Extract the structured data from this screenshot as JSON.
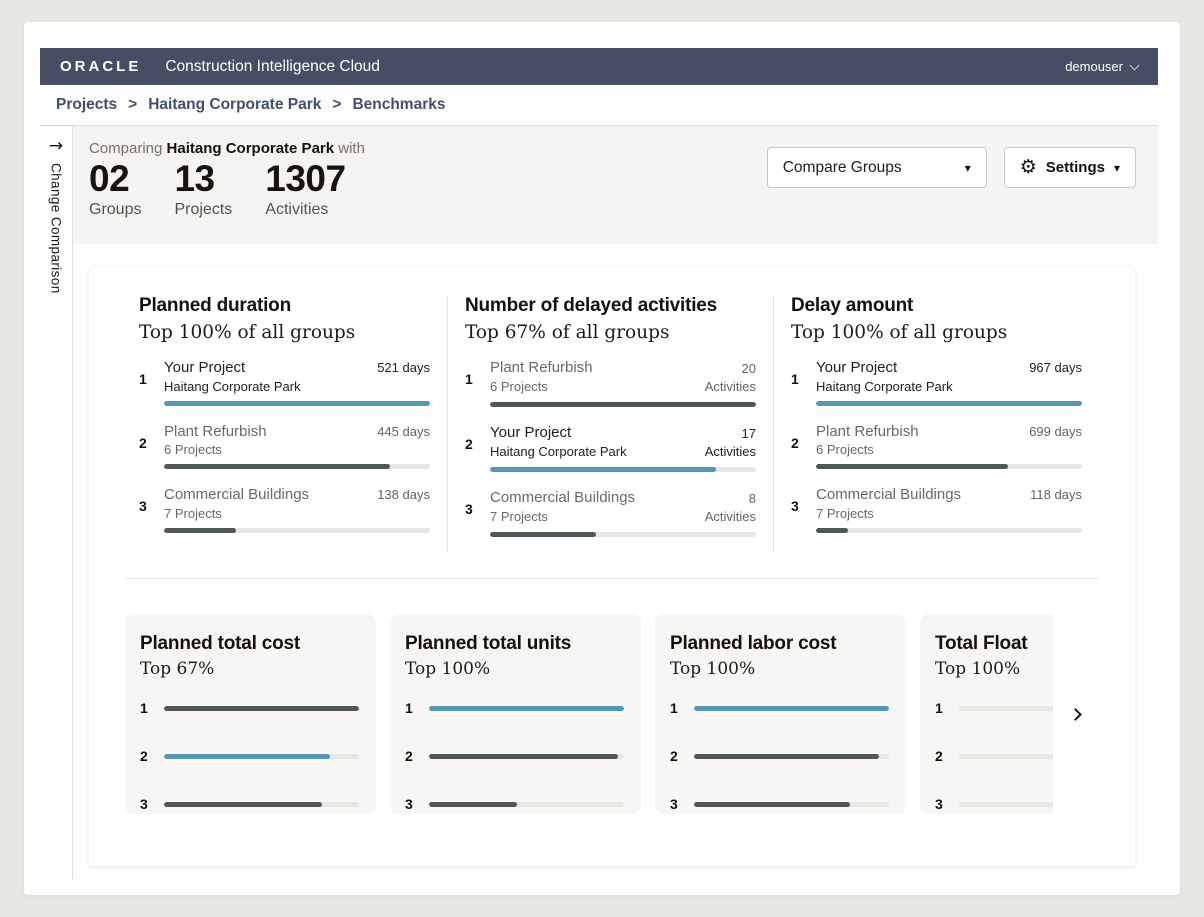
{
  "header": {
    "logo": "ORACLE",
    "app_title": "Construction Intelligence Cloud",
    "user": "demouser"
  },
  "breadcrumb": {
    "sep": ">",
    "items": [
      "Projects",
      "Haitang Corporate Park",
      "Benchmarks"
    ]
  },
  "rail": {
    "arrow": "→",
    "label": "Change Comparison"
  },
  "comparison": {
    "prefix": "Comparing",
    "project": "Haitang Corporate Park",
    "suffix": "with",
    "stats": [
      {
        "value": "02",
        "label": "Groups"
      },
      {
        "value": "13",
        "label": "Projects"
      },
      {
        "value": "1307",
        "label": "Activities"
      }
    ],
    "compare_groups": {
      "label": "Compare Groups",
      "caret": "▾"
    },
    "settings": {
      "label": "Settings",
      "icon": "⚙",
      "caret": "▾"
    }
  },
  "colors": {
    "teal": "#5598B2",
    "dark": "#4F5857",
    "track": "#E8E6E2",
    "header_bar": "#474E64",
    "none": "transparent"
  },
  "benchmarks": [
    {
      "title": "Planned duration",
      "subtitle": "Top 100% of all groups",
      "items": [
        {
          "rank": "1",
          "name": "Your Project",
          "sub": "Haitang Corporate Park",
          "amount": "521",
          "unit": "days",
          "highlight": true,
          "bar_pct": 100,
          "bar_color": "teal"
        },
        {
          "rank": "2",
          "name": "Plant Refurbish",
          "sub": "6 Projects",
          "amount": "445",
          "unit": "days",
          "highlight": false,
          "bar_pct": 85,
          "bar_color": "dark"
        },
        {
          "rank": "3",
          "name": "Commercial Buildings",
          "sub": "7 Projects",
          "amount": "138",
          "unit": "days",
          "highlight": false,
          "bar_pct": 27,
          "bar_color": "dark"
        }
      ]
    },
    {
      "title": "Number of delayed activities",
      "subtitle": "Top 67% of all groups",
      "items": [
        {
          "rank": "1",
          "name": "Plant Refurbish",
          "sub": "6 Projects",
          "amount": "20",
          "unit": "Activities",
          "highlight": false,
          "bar_pct": 100,
          "bar_color": "dark"
        },
        {
          "rank": "2",
          "name": "Your Project",
          "sub": "Haitang Corporate Park",
          "amount": "17",
          "unit": "Activities",
          "highlight": true,
          "bar_pct": 85,
          "bar_color": "teal"
        },
        {
          "rank": "3",
          "name": "Commercial Buildings",
          "sub": "7 Projects",
          "amount": "8",
          "unit": "Activities",
          "highlight": false,
          "bar_pct": 40,
          "bar_color": "dark"
        }
      ]
    },
    {
      "title": "Delay amount",
      "subtitle": "Top 100% of all groups",
      "items": [
        {
          "rank": "1",
          "name": "Your Project",
          "sub": "Haitang Corporate Park",
          "amount": "967",
          "unit": "days",
          "highlight": true,
          "bar_pct": 100,
          "bar_color": "teal"
        },
        {
          "rank": "2",
          "name": "Plant Refurbish",
          "sub": "6 Projects",
          "amount": "699",
          "unit": "days",
          "highlight": false,
          "bar_pct": 72,
          "bar_color": "dark"
        },
        {
          "rank": "3",
          "name": "Commercial Buildings",
          "sub": "7 Projects",
          "amount": "118",
          "unit": "days",
          "highlight": false,
          "bar_pct": 12,
          "bar_color": "dark"
        }
      ]
    }
  ],
  "mini_cards": [
    {
      "title": "Planned total cost",
      "subtitle": "Top 67%",
      "bars": [
        {
          "rank": "1",
          "pct": 100,
          "color": "dark"
        },
        {
          "rank": "2",
          "pct": 85,
          "color": "teal"
        },
        {
          "rank": "3",
          "pct": 81,
          "color": "dark"
        }
      ]
    },
    {
      "title": "Planned total units",
      "subtitle": "Top 100%",
      "bars": [
        {
          "rank": "1",
          "pct": 100,
          "color": "teal"
        },
        {
          "rank": "2",
          "pct": 97,
          "color": "dark"
        },
        {
          "rank": "3",
          "pct": 45,
          "color": "dark"
        }
      ]
    },
    {
      "title": "Planned labor cost",
      "subtitle": "Top 100%",
      "bars": [
        {
          "rank": "1",
          "pct": 100,
          "color": "teal"
        },
        {
          "rank": "2",
          "pct": 95,
          "color": "dark"
        },
        {
          "rank": "3",
          "pct": 80,
          "color": "dark"
        }
      ]
    },
    {
      "title": "Total Float",
      "subtitle": "Top 100%",
      "bars": [
        {
          "rank": "1",
          "pct": 0,
          "color": "none"
        },
        {
          "rank": "2",
          "pct": 0,
          "color": "none"
        },
        {
          "rank": "3",
          "pct": 0,
          "color": "none"
        }
      ]
    }
  ]
}
